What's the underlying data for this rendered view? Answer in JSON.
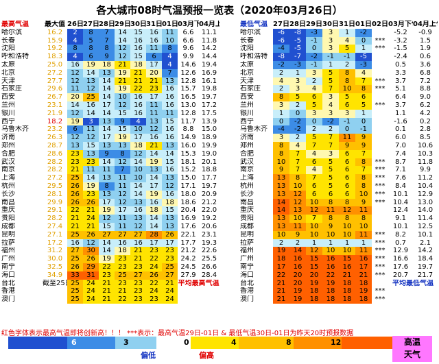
{
  "title": "各大城市08时气温预报一览表（2020年03月26日）",
  "max_table": {
    "headers": {
      "col1": "最高气温",
      "col2": "最大值",
      "days": [
        "26日",
        "27日",
        "28日",
        "29日",
        "30日",
        "31日",
        "01日"
      ],
      "p1": "03月下旬",
      "p2": "04月上旬"
    },
    "rows": [
      {
        "city": "哈尔滨",
        "ref": "16.2",
        "red": false,
        "v": [
          "2",
          "8",
          "7",
          "14",
          "15",
          "16",
          "11"
        ],
        "p1": "6.6",
        "p2": "11.1"
      },
      {
        "city": "长春",
        "ref": "15.9",
        "red": false,
        "v": [
          "4",
          "5",
          "7",
          "14",
          "16",
          "16",
          "10"
        ],
        "p1": "6.6",
        "p2": "11.8"
      },
      {
        "city": "沈阳",
        "ref": "19.2",
        "red": false,
        "v": [
          "8",
          "8",
          "8",
          "12",
          "16",
          "11",
          "8"
        ],
        "p1": "9.6",
        "p2": "14.2"
      },
      {
        "city": "呼和浩特",
        "ref": "18.3",
        "red": false,
        "v": [
          "4",
          "6",
          "9",
          "12",
          "15",
          "6",
          "4"
        ],
        "p1": "9.9",
        "p2": "14.4"
      },
      {
        "city": "太原",
        "ref": "25.0",
        "red": false,
        "v": [
          "16",
          "19",
          "18",
          "21",
          "18",
          "17",
          "4"
        ],
        "p1": "14.6",
        "p2": "19.4"
      },
      {
        "city": "北京",
        "ref": "27.2",
        "red": false,
        "v": [
          "12",
          "14",
          "13",
          "19",
          "21",
          "20",
          "7"
        ],
        "p1": "12.6",
        "p2": "16.9"
      },
      {
        "city": "天津",
        "ref": "27.7",
        "red": false,
        "v": [
          "12",
          "13",
          "14",
          "21",
          "21",
          "21",
          "13"
        ],
        "p1": "12.8",
        "p2": "16.1"
      },
      {
        "city": "石家庄",
        "ref": "29.6",
        "red": false,
        "v": [
          "11",
          "12",
          "14",
          "19",
          "22",
          "23",
          "16"
        ],
        "p1": "15.7",
        "p2": "19.8"
      },
      {
        "city": "西安",
        "ref": "26.7",
        "red": false,
        "v": [
          "20",
          "25",
          "14",
          "10",
          "16",
          "17",
          "16"
        ],
        "p1": "16.5",
        "p2": "19.7"
      },
      {
        "city": "兰州",
        "ref": "23.1",
        "red": false,
        "v": [
          "14",
          "16",
          "17",
          "12",
          "16",
          "11",
          "16"
        ],
        "p1": "13.0",
        "p2": "17.2"
      },
      {
        "city": "银川",
        "ref": "21.9",
        "red": false,
        "v": [
          "12",
          "14",
          "14",
          "15",
          "16",
          "11",
          "11"
        ],
        "p1": "12.8",
        "p2": "17.5"
      },
      {
        "city": "西宁",
        "ref": "18.2",
        "red": true,
        "v": [
          "19",
          "3",
          "13",
          "9",
          "4",
          "13",
          "15"
        ],
        "p1": "11.7",
        "p2": "13.9"
      },
      {
        "city": "乌鲁木齐",
        "ref": "23.2",
        "red": false,
        "v": [
          "6",
          "11",
          "14",
          "15",
          "10",
          "12",
          "16"
        ],
        "p1": "8.8",
        "p2": "15.0"
      },
      {
        "city": "济南",
        "ref": "26.3",
        "red": false,
        "v": [
          "12",
          "12",
          "17",
          "19",
          "17",
          "16",
          "16"
        ],
        "p1": "14.9",
        "p2": "18.9"
      },
      {
        "city": "郑州",
        "ref": "28.7",
        "red": false,
        "v": [
          "13",
          "15",
          "13",
          "13",
          "18",
          "21",
          "13"
        ],
        "p1": "16.0",
        "p2": "19.9"
      },
      {
        "city": "合肥",
        "ref": "28.6",
        "red": false,
        "v": [
          "23",
          "13",
          "9",
          "8",
          "12",
          "14",
          "14"
        ],
        "p1": "15.3",
        "p2": "19.0"
      },
      {
        "city": "武汉",
        "ref": "28.2",
        "red": false,
        "v": [
          "23",
          "23",
          "14",
          "12",
          "14",
          "19",
          "15"
        ],
        "p1": "18.1",
        "p2": "20.1"
      },
      {
        "city": "南京",
        "ref": "28.2",
        "red": false,
        "v": [
          "21",
          "11",
          "11",
          "7",
          "10",
          "13",
          "16"
        ],
        "p1": "15.2",
        "p2": "18.8"
      },
      {
        "city": "上海",
        "ref": "27.2",
        "red": false,
        "v": [
          "25",
          "14",
          "13",
          "11",
          "10",
          "14",
          "13"
        ],
        "p1": "15.0",
        "p2": "17.7"
      },
      {
        "city": "杭州",
        "ref": "29.5",
        "red": false,
        "v": [
          "26",
          "19",
          "8",
          "11",
          "14",
          "17",
          "12"
        ],
        "p1": "17.1",
        "p2": "19.7"
      },
      {
        "city": "长沙",
        "ref": "28.1",
        "red": false,
        "v": [
          "26",
          "23",
          "13",
          "12",
          "14",
          "19",
          "16"
        ],
        "p1": "18.0",
        "p2": "20.9"
      },
      {
        "city": "南昌",
        "ref": "29.9",
        "red": false,
        "v": [
          "26",
          "26",
          "17",
          "12",
          "13",
          "16",
          "18"
        ],
        "p1": "18.6",
        "p2": "21.2"
      },
      {
        "city": "重庆",
        "ref": "29.1",
        "red": false,
        "v": [
          "22",
          "21",
          "19",
          "17",
          "16",
          "18",
          "15"
        ],
        "p1": "20.4",
        "p2": "22.0"
      },
      {
        "city": "贵阳",
        "ref": "28.2",
        "red": false,
        "v": [
          "21",
          "24",
          "12",
          "11",
          "13",
          "14",
          "13"
        ],
        "p1": "16.9",
        "p2": "19.2"
      },
      {
        "city": "成都",
        "ref": "27.4",
        "red": false,
        "v": [
          "21",
          "21",
          "15",
          "11",
          "12",
          "14",
          "13"
        ],
        "p1": "17.6",
        "p2": "20.6"
      },
      {
        "city": "昆明",
        "ref": "27.1",
        "red": false,
        "v": [
          "25",
          "26",
          "27",
          "27",
          "27",
          "28",
          "26"
        ],
        "p1": "22.1",
        "p2": "23.1"
      },
      {
        "city": "拉萨",
        "ref": "17.2",
        "red": false,
        "v": [
          "16",
          "12",
          "14",
          "16",
          "16",
          "17",
          "17"
        ],
        "p1": "17.7",
        "p2": "19.3"
      },
      {
        "city": "福州",
        "ref": "31.2",
        "red": false,
        "v": [
          "27",
          "30",
          "14",
          "18",
          "21",
          "23",
          "23"
        ],
        "p1": "21.2",
        "p2": "22.6"
      },
      {
        "city": "广州",
        "ref": "30.0",
        "red": false,
        "v": [
          "25",
          "26",
          "19",
          "23",
          "21",
          "22",
          "23"
        ],
        "p1": "24.2",
        "p2": "25.5"
      },
      {
        "city": "南宁",
        "ref": "32.5",
        "red": false,
        "v": [
          "26",
          "29",
          "22",
          "23",
          "23",
          "24",
          "25"
        ],
        "p1": "24.5",
        "p2": "26.6"
      },
      {
        "city": "海口",
        "ref": "34.9",
        "red": false,
        "v": [
          "33",
          "31",
          "23",
          "25",
          "27",
          "26",
          "27"
        ],
        "p1": "27.9",
        "p2": "28.4"
      },
      {
        "city": "台北",
        "ref": "截至25日",
        "red": false,
        "v": [
          "25",
          "24",
          "21",
          "23",
          "23",
          "22",
          "21"
        ],
        "p1": "",
        "p2": ""
      },
      {
        "city": "香港",
        "ref": "",
        "red": false,
        "v": [
          "25",
          "24",
          "21",
          "21",
          "23",
          "24",
          "24"
        ],
        "p1": "",
        "p2": ""
      },
      {
        "city": "澳门",
        "ref": "",
        "red": false,
        "v": [
          "25",
          "24",
          "21",
          "22",
          "23",
          "23",
          "24"
        ],
        "p1": "",
        "p2": ""
      }
    ],
    "note": "平均最高气温"
  },
  "min_table": {
    "headers": {
      "col1": "最低气温",
      "days": [
        "27日",
        "28日",
        "29日",
        "30日",
        "31日",
        "01日",
        "02日"
      ],
      "p1": "03月下旬",
      "p2": "04月上旬"
    },
    "rows": [
      {
        "city": "哈尔滨",
        "v": [
          "-6",
          "-8",
          "-3",
          "3",
          "1",
          "-2",
          ""
        ],
        "p1": "-5.2",
        "p2": "-0.9"
      },
      {
        "city": "长春",
        "v": [
          "-6",
          "-5",
          "-1",
          "3",
          "4",
          "0",
          "***"
        ],
        "p1": "-3.2",
        "p2": "1.5"
      },
      {
        "city": "沈阳",
        "v": [
          "-4",
          "-5",
          "0",
          "3",
          "5",
          "1",
          "***"
        ],
        "p1": "-1.5",
        "p2": "1.9"
      },
      {
        "city": "呼和浩特",
        "v": [
          "-8",
          "-7",
          "-2",
          "-1",
          "-1",
          "-5",
          ""
        ],
        "p1": "-2.4",
        "p2": "0.6"
      },
      {
        "city": "太原",
        "v": [
          "-2",
          "-3",
          "-1",
          "1",
          "2",
          "-3",
          ""
        ],
        "p1": "0.5",
        "p2": "3.6"
      },
      {
        "city": "北京",
        "v": [
          "2",
          "1",
          "3",
          "5",
          "8",
          "4",
          ""
        ],
        "p1": "3.3",
        "p2": "6.8"
      },
      {
        "city": "天津",
        "v": [
          "4",
          "3",
          "2",
          "5",
          "8",
          "7",
          "***"
        ],
        "p1": "3.7",
        "p2": "7.2"
      },
      {
        "city": "石家庄",
        "v": [
          "2",
          "3",
          "4",
          "7",
          "10",
          "8",
          "***"
        ],
        "p1": "5.1",
        "p2": "8.8"
      },
      {
        "city": "西安",
        "v": [
          "8",
          "5",
          "6",
          "3",
          "5",
          "6",
          ""
        ],
        "p1": "6.4",
        "p2": "9.0"
      },
      {
        "city": "兰州",
        "v": [
          "3",
          "2",
          "5",
          "4",
          "6",
          "5",
          "***"
        ],
        "p1": "3.7",
        "p2": "6.2"
      },
      {
        "city": "银川",
        "v": [
          "1",
          "0",
          "3",
          "3",
          "3",
          "1",
          ""
        ],
        "p1": "1.1",
        "p2": "4.2"
      },
      {
        "city": "西宁",
        "v": [
          "0",
          "-2",
          "0",
          "-2",
          "-1",
          "0",
          ""
        ],
        "p1": "-1.6",
        "p2": "0.2"
      },
      {
        "city": "乌鲁木齐",
        "v": [
          "-4",
          "-2",
          "2",
          "2",
          "0",
          "-1",
          ""
        ],
        "p1": "0.1",
        "p2": "2.8"
      },
      {
        "city": "济南",
        "v": [
          "3",
          "2",
          "5",
          "7",
          "11",
          "9",
          ""
        ],
        "p1": "6.0",
        "p2": "8.5"
      },
      {
        "city": "郑州",
        "v": [
          "8",
          "4",
          "7",
          "7",
          "9",
          "9",
          ""
        ],
        "p1": "7.0",
        "p2": "10.6"
      },
      {
        "city": "合肥",
        "v": [
          "8",
          "7",
          "4",
          "3",
          "6",
          "7",
          ""
        ],
        "p1": "7.4",
        "p2": "10.3"
      },
      {
        "city": "武汉",
        "v": [
          "10",
          "7",
          "6",
          "5",
          "6",
          "8",
          "***"
        ],
        "p1": "8.7",
        "p2": "11.8"
      },
      {
        "city": "南京",
        "v": [
          "9",
          "7",
          "4",
          "5",
          "6",
          "7",
          "***"
        ],
        "p1": "7.1",
        "p2": "9.9"
      },
      {
        "city": "上海",
        "v": [
          "13",
          "8",
          "7",
          "5",
          "6",
          "8",
          "***"
        ],
        "p1": "7.6",
        "p2": "11.2"
      },
      {
        "city": "杭州",
        "v": [
          "13",
          "10",
          "6",
          "5",
          "6",
          "8",
          "***"
        ],
        "p1": "8.4",
        "p2": "10.4"
      },
      {
        "city": "长沙",
        "v": [
          "13",
          "12",
          "6",
          "6",
          "6",
          "10",
          "***"
        ],
        "p1": "10.1",
        "p2": "12.9"
      },
      {
        "city": "南昌",
        "v": [
          "14",
          "12",
          "10",
          "8",
          "8",
          "9",
          "***"
        ],
        "p1": "10.4",
        "p2": "13.0"
      },
      {
        "city": "重庆",
        "v": [
          "14",
          "13",
          "12",
          "11",
          "12",
          "11",
          ""
        ],
        "p1": "12.4",
        "p2": "14.0"
      },
      {
        "city": "贵阳",
        "v": [
          "13",
          "10",
          "7",
          "8",
          "8",
          "8",
          ""
        ],
        "p1": "9.1",
        "p2": "11.4"
      },
      {
        "city": "成都",
        "v": [
          "13",
          "11",
          "10",
          "9",
          "10",
          "10",
          ""
        ],
        "p1": "10.1",
        "p2": "12.5"
      },
      {
        "city": "昆明",
        "v": [
          "10",
          "9",
          "10",
          "10",
          "10",
          "11",
          "***"
        ],
        "p1": "8.2",
        "p2": "10.1"
      },
      {
        "city": "拉萨",
        "v": [
          "2",
          "2",
          "1",
          "1",
          "1",
          "1",
          "***"
        ],
        "p1": "0.7",
        "p2": "2.1"
      },
      {
        "city": "福州",
        "v": [
          "19",
          "14",
          "12",
          "10",
          "10",
          "11",
          "***"
        ],
        "p1": "12.9",
        "p2": "14.2"
      },
      {
        "city": "广州",
        "v": [
          "18",
          "16",
          "15",
          "16",
          "15",
          "16",
          "***"
        ],
        "p1": "16.6",
        "p2": "18.4"
      },
      {
        "city": "南宁",
        "v": [
          "17",
          "16",
          "15",
          "16",
          "16",
          "17",
          "***"
        ],
        "p1": "17.6",
        "p2": "19.7"
      },
      {
        "city": "海口",
        "v": [
          "22",
          "20",
          "20",
          "22",
          "21",
          "21",
          "***"
        ],
        "p1": "20.7",
        "p2": "21.7"
      },
      {
        "city": "台北",
        "v": [
          "21",
          "20",
          "19",
          "19",
          "18",
          "18",
          ""
        ],
        "p1": "",
        "p2": ""
      },
      {
        "city": "香港",
        "v": [
          "21",
          "19",
          "18",
          "18",
          "18",
          "19",
          "***"
        ],
        "p1": "",
        "p2": ""
      },
      {
        "city": "澳门",
        "v": [
          "21",
          "19",
          "18",
          "18",
          "18",
          "18",
          "***"
        ],
        "p1": "",
        "p2": ""
      }
    ],
    "note": "平均最低气温"
  },
  "footer": {
    "text": "红色字体表示最高气温即将创新高！！！ ***表示：最高气温29日-01日 & 最低气温30日-01日为昨天20时预报数据"
  },
  "legend": {
    "labels": [
      "6",
      "3",
      "0",
      "4",
      "8",
      "12"
    ],
    "low_label": "偏低",
    "high_label": "偏高",
    "hot_line1": "高温",
    "hot_line2": "天气"
  },
  "colors": {
    "deep_blue": "#2050d0",
    "blue": "#3c8ce6",
    "sky": "#8fd0f0",
    "light_cyan": "#c8eefa",
    "white": "#ffffff",
    "light_yellow": "#fff8b0",
    "yellow": "#ffe400",
    "amber": "#ffc000",
    "orange": "#ff9000",
    "red_orange": "#ff6000",
    "magenta": "#ff77ff"
  }
}
